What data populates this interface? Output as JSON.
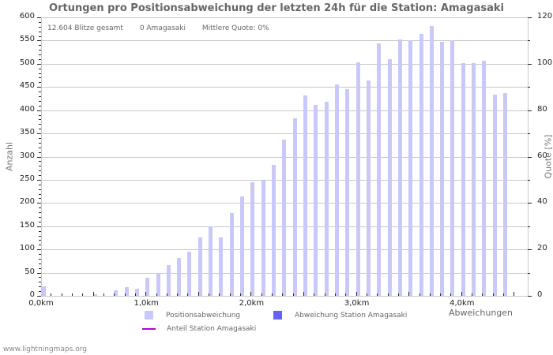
{
  "title": "Ortungen pro Positionsabweichung der letzten 24h für die Station: Amagasaki",
  "summary": {
    "total": "12.604 Blitze gesamt",
    "station": "0 Amagasaki",
    "quote": "Mittlere Quote: 0%"
  },
  "axes": {
    "ylabel_left": "Anzahl",
    "ylabel_right": "Quote [%]",
    "xlabel": "Abweichungen",
    "left_ticks": [
      "0",
      "50",
      "100",
      "150",
      "200",
      "250",
      "300",
      "350",
      "400",
      "450",
      "500",
      "550",
      "600"
    ],
    "right_ticks": [
      "0",
      "20",
      "40",
      "60",
      "80",
      "100",
      "120"
    ],
    "x_ticks": [
      "0,0km",
      "1,0km",
      "2,0km",
      "3,0km",
      "4,0km"
    ]
  },
  "legend": {
    "items": [
      {
        "label": "Positionsabweichung",
        "color": "#c8c8fa",
        "type": "box"
      },
      {
        "label": "Abweichung Station Amagasaki",
        "color": "#6464f0",
        "type": "box"
      },
      {
        "label": "Anteil Station Amagasaki",
        "color": "#b400dc",
        "type": "line"
      }
    ]
  },
  "footer": "www.lightningmaps.org",
  "chart_data": {
    "type": "bar",
    "title": "Ortungen pro Positionsabweichung der letzten 24h für die Station: Amagasaki",
    "xlabel": "Abweichungen",
    "ylabel": "Anzahl",
    "ylabel_right": "Quote [%]",
    "ylim": [
      0,
      600
    ],
    "ylim_right": [
      0,
      120
    ],
    "x_unit": "km",
    "x_step": 0.1,
    "categories": [
      "0.0",
      "0.1",
      "0.2",
      "0.3",
      "0.4",
      "0.5",
      "0.6",
      "0.7",
      "0.8",
      "0.9",
      "1.0",
      "1.1",
      "1.2",
      "1.3",
      "1.4",
      "1.5",
      "1.6",
      "1.7",
      "1.8",
      "1.9",
      "2.0",
      "2.1",
      "2.2",
      "2.3",
      "2.4",
      "2.5",
      "2.6",
      "2.7",
      "2.8",
      "2.9",
      "3.0",
      "3.1",
      "3.2",
      "3.3",
      "3.4",
      "3.5",
      "3.6",
      "3.7",
      "3.8",
      "3.9",
      "4.0",
      "4.1",
      "4.2",
      "4.3",
      "4.4"
    ],
    "series": [
      {
        "name": "Positionsabweichung",
        "color": "#c8c8fa",
        "values": [
          20,
          0,
          0,
          0,
          0,
          3,
          0,
          12,
          19,
          15,
          39,
          50,
          66,
          82,
          96,
          125,
          149,
          126,
          178,
          215,
          245,
          249,
          283,
          337,
          383,
          432,
          412,
          418,
          455,
          446,
          503,
          464,
          544,
          510,
          553,
          550,
          564,
          581,
          547,
          550,
          501,
          501,
          506,
          434,
          436
        ]
      },
      {
        "name": "Abweichung Station Amagasaki",
        "color": "#6464f0",
        "values": [
          0,
          0,
          0,
          0,
          0,
          0,
          0,
          0,
          0,
          0,
          0,
          0,
          0,
          0,
          0,
          0,
          0,
          0,
          0,
          0,
          0,
          0,
          0,
          0,
          0,
          0,
          0,
          0,
          0,
          0,
          0,
          0,
          0,
          0,
          0,
          0,
          0,
          0,
          0,
          0,
          0,
          0,
          0,
          0,
          0
        ]
      },
      {
        "name": "Anteil Station Amagasaki",
        "color": "#b400dc",
        "axis": "right",
        "values": [
          0,
          0,
          0,
          0,
          0,
          0,
          0,
          0,
          0,
          0,
          0,
          0,
          0,
          0,
          0,
          0,
          0,
          0,
          0,
          0,
          0,
          0,
          0,
          0,
          0,
          0,
          0,
          0,
          0,
          0,
          0,
          0,
          0,
          0,
          0,
          0,
          0,
          0,
          0,
          0,
          0,
          0,
          0,
          0,
          0
        ]
      }
    ],
    "grid": true,
    "legend_position": "bottom"
  }
}
